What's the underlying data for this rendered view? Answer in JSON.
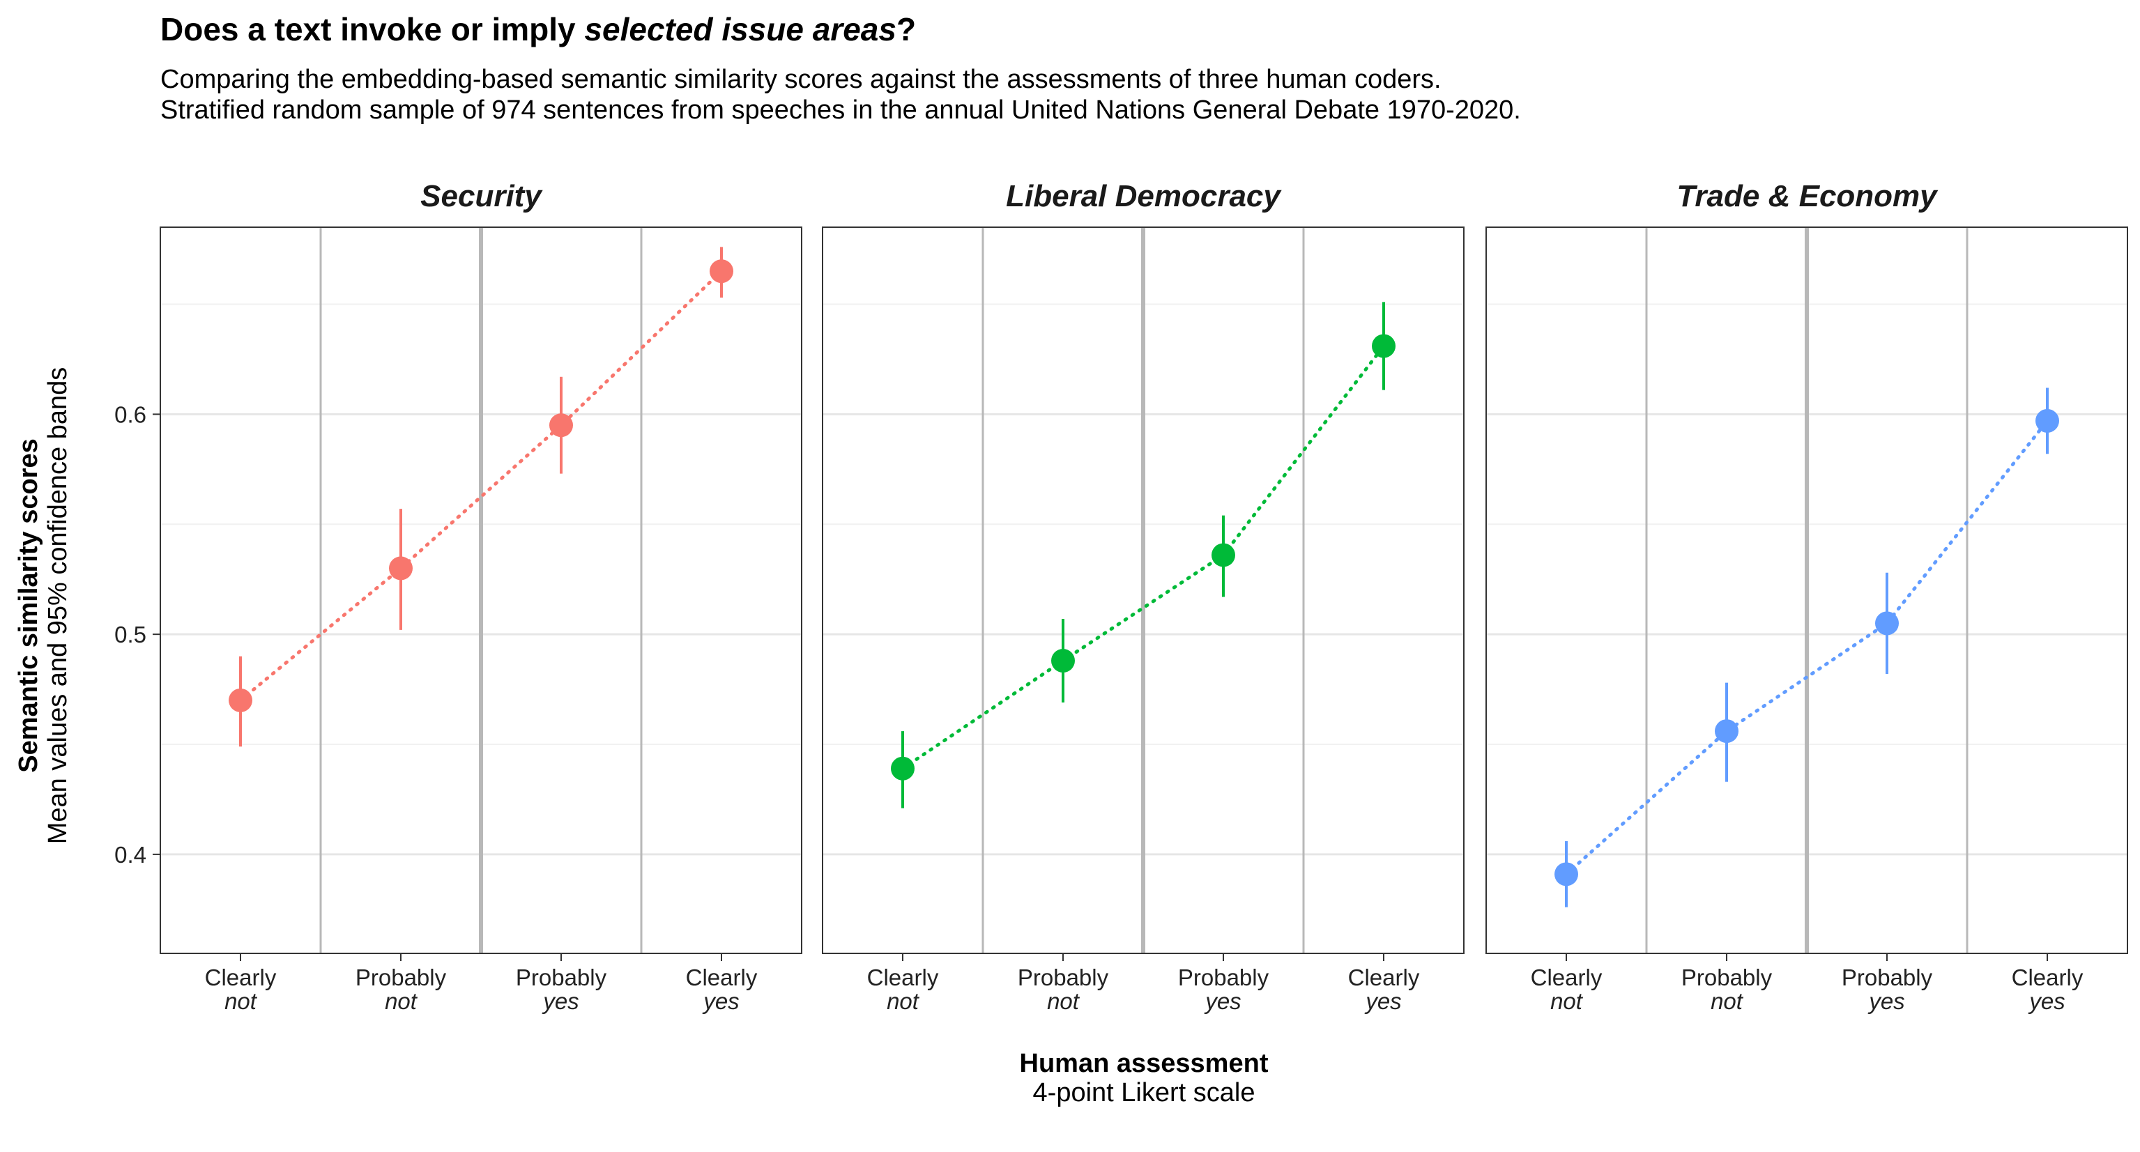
{
  "header": {
    "title_prefix": "Does a text invoke or imply ",
    "title_emph": "selected issue areas",
    "title_suffix": "?",
    "subtitle_line1": "Comparing the embedding-based semantic similarity scores against the assessments of three human coders.",
    "subtitle_line2": "Stratified random sample of 974 sentences from speeches in the annual United Nations General Debate 1970-2020."
  },
  "chart_data": {
    "type": "scatter",
    "title": "Does a text invoke or imply selected issue areas?",
    "ylabel": "Semantic similarity scores",
    "ylabel_sub": "Mean values and 95% confidence bands",
    "xlabel": "Human assessment",
    "xlabel_sub": "4-point Likert scale",
    "ylim": [
      0.355,
      0.685
    ],
    "yticks": [
      0.4,
      0.5,
      0.6
    ],
    "ytick_labels": [
      "0.4",
      "0.5",
      "0.6"
    ],
    "grid": true,
    "categories": [
      {
        "top": "Clearly",
        "bottom": "not"
      },
      {
        "top": "Probably",
        "bottom": "not"
      },
      {
        "top": "Probably",
        "bottom": "yes"
      },
      {
        "top": "Clearly",
        "bottom": "yes"
      }
    ],
    "panels": [
      {
        "name": "Security",
        "color": "#F8766D",
        "values": [
          0.47,
          0.53,
          0.595,
          0.665
        ],
        "lower": [
          0.449,
          0.502,
          0.573,
          0.653
        ],
        "upper": [
          0.49,
          0.557,
          0.617,
          0.676
        ]
      },
      {
        "name": "Liberal Democracy",
        "color": "#00BA38",
        "values": [
          0.439,
          0.488,
          0.536,
          0.631
        ],
        "lower": [
          0.421,
          0.469,
          0.517,
          0.611
        ],
        "upper": [
          0.456,
          0.507,
          0.554,
          0.651
        ]
      },
      {
        "name": "Trade & Economy",
        "color": "#619CFF",
        "values": [
          0.391,
          0.456,
          0.505,
          0.597
        ],
        "lower": [
          0.376,
          0.433,
          0.482,
          0.582
        ],
        "upper": [
          0.406,
          0.478,
          0.528,
          0.612
        ]
      }
    ]
  }
}
